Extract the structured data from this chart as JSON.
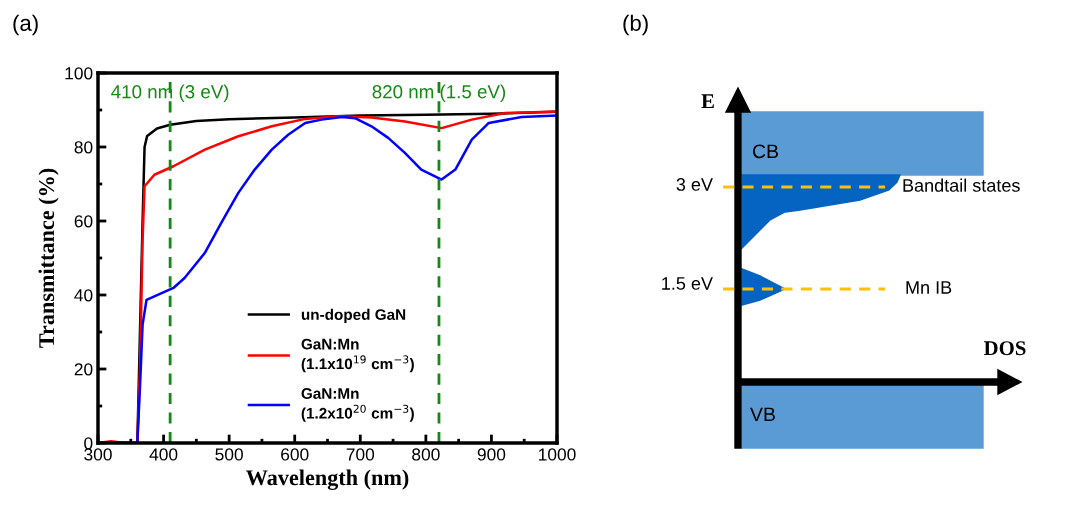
{
  "chart_data": [
    {
      "type": "line",
      "xlabel": "Wavelength (nm)",
      "ylabel": "Transmittance (%)",
      "xlim": [
        300,
        1000
      ],
      "xticks": [
        300,
        400,
        500,
        600,
        700,
        800,
        900,
        1000
      ],
      "ylim": [
        0,
        100
      ],
      "yticks": [
        0,
        20,
        40,
        60,
        80,
        100
      ],
      "grid": false,
      "legend": "bottom right",
      "annotations": [
        "(a)"
      ],
      "ref_lines": [
        {
          "axis": "x",
          "value": 410,
          "label": "410 nm (3 eV)",
          "color": "#138a13",
          "line_style": "dashed"
        },
        {
          "axis": "x",
          "value": 820,
          "label": "820 nm (1.5 eV)",
          "color": "#138a13",
          "line_style": "dashed"
        }
      ],
      "series": [
        {
          "name": "un-doped GaN",
          "color": "#000000",
          "x": [
            300,
            360,
            368,
            371,
            375,
            390,
            410,
            450,
            500,
            600,
            700,
            800,
            900,
            1000
          ],
          "values": [
            0,
            0,
            60,
            80,
            83,
            85,
            86,
            87,
            87.5,
            88,
            88.5,
            88.7,
            89,
            89.5
          ]
        },
        {
          "name": "GaN:Mn\n(1.1x10$^{19}$ cm$^{−3}$)",
          "color": "#ff0000",
          "x": [
            300,
            320,
            340,
            360,
            364,
            368,
            371,
            386,
            415,
            463,
            514,
            565,
            616,
            666,
            717,
            768,
            824,
            870,
            921,
            1000
          ],
          "values": [
            0,
            0.5,
            0,
            0,
            20,
            55,
            69.4,
            72.5,
            74.8,
            79.3,
            82.9,
            85.6,
            87.6,
            88.3,
            88,
            86.9,
            85.1,
            87.4,
            89.2,
            89.6
          ]
        },
        {
          "name": "GaN:Mn\n(1.2x10$^{20}$ cm$^{−3}$)",
          "color": "#0000ff",
          "x": [
            300,
            360,
            364,
            368,
            374,
            415,
            432,
            463,
            488,
            514,
            539,
            565,
            590,
            616,
            641,
            672,
            692,
            717,
            743,
            768,
            793,
            824,
            845,
            870,
            896,
            946,
            1000
          ],
          "values": [
            0,
            0,
            15,
            32,
            38.7,
            41.9,
            44.6,
            51.4,
            59.5,
            67.6,
            73.9,
            79.3,
            83.3,
            86.5,
            87.4,
            88.1,
            87.8,
            85.6,
            82.4,
            78.4,
            73.9,
            71.2,
            73.9,
            82,
            86.5,
            88.1,
            88.5
          ]
        }
      ]
    },
    {
      "type": "other",
      "annotations": [
        "(b)",
        "E",
        "DOS",
        "CB",
        "VB",
        "3 eV",
        "Bandtail states",
        "1.5 eV",
        "Mn IB"
      ]
    }
  ]
}
